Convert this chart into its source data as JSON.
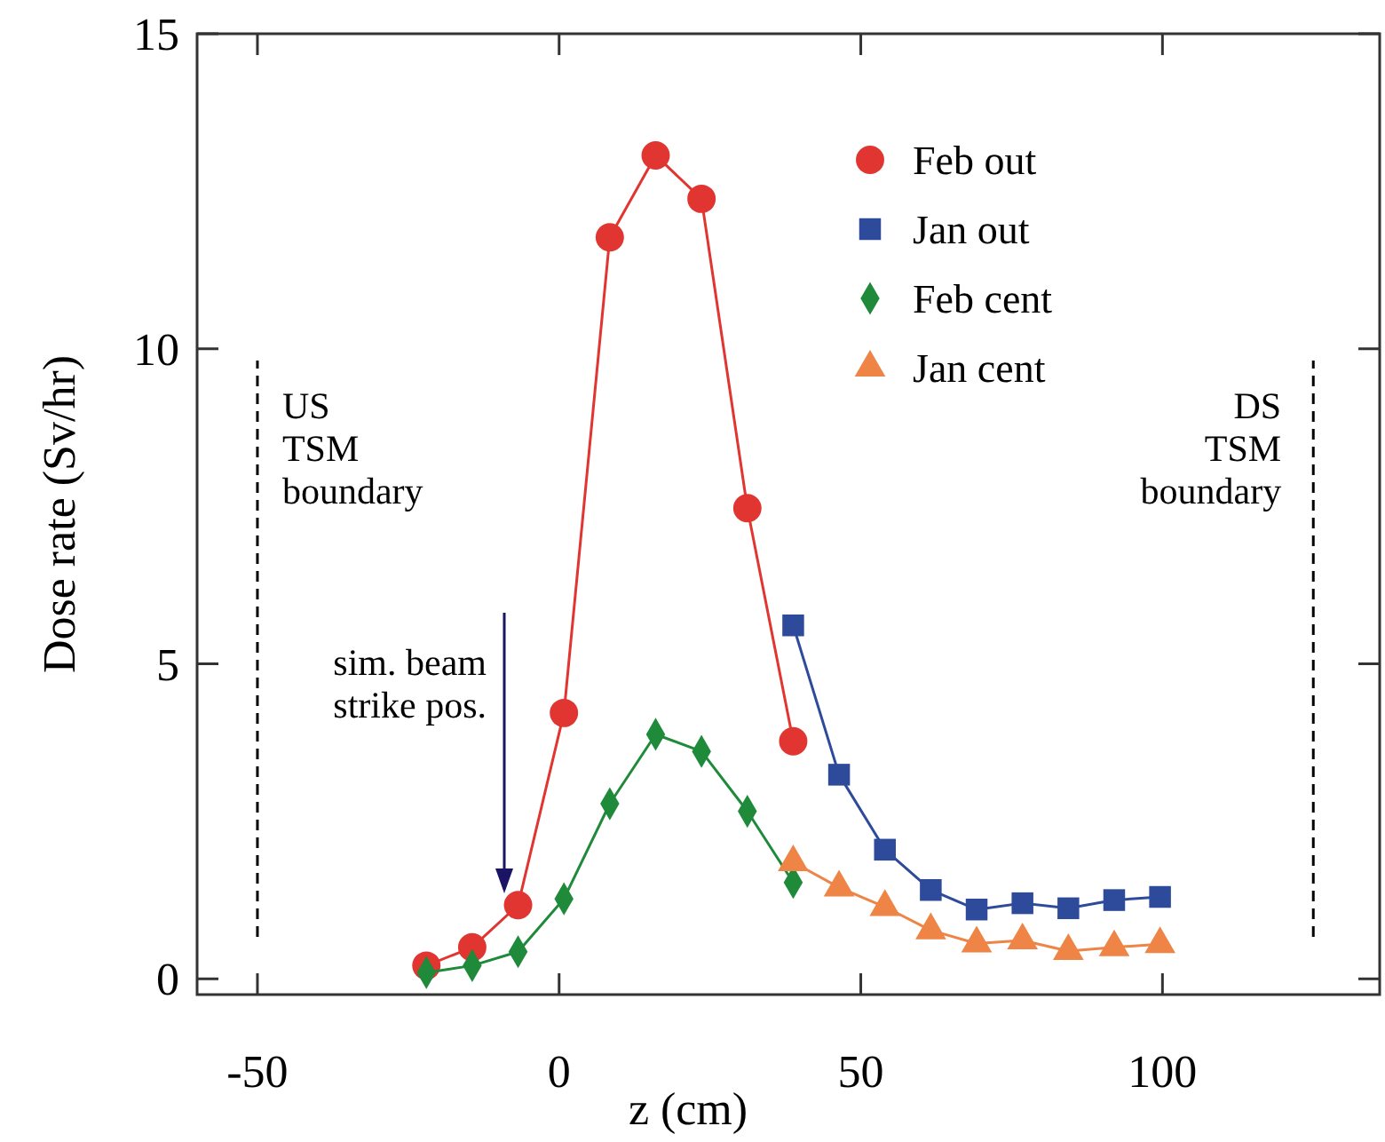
{
  "chart_data": {
    "type": "line",
    "xlabel": "z (cm)",
    "ylabel": "Dose rate (Sv/hr)",
    "xlim": [
      -60,
      136
    ],
    "ylim": [
      -0.25,
      15
    ],
    "xticks": [
      -50,
      0,
      50,
      100
    ],
    "yticks": [
      0,
      5,
      10,
      15
    ],
    "legend": "top right",
    "series": [
      {
        "name": "Feb out",
        "color": "#e03530",
        "marker": "circle",
        "x": [
          -22,
          -14.4,
          -6.8,
          0.8,
          8.4,
          16,
          23.6,
          31.2,
          38.8
        ],
        "values": [
          0.21,
          0.5,
          1.17,
          4.22,
          11.77,
          13.07,
          12.38,
          7.47,
          3.77
        ]
      },
      {
        "name": "Jan out",
        "color": "#2e4b9b",
        "marker": "square",
        "x": [
          38.8,
          46.4,
          54,
          61.6,
          69.2,
          76.8,
          84.4,
          92,
          99.6
        ],
        "values": [
          5.61,
          3.24,
          2.05,
          1.41,
          1.1,
          1.2,
          1.12,
          1.25,
          1.3
        ]
      },
      {
        "name": "Feb cent",
        "color": "#1f8a3a",
        "marker": "diamond",
        "x": [
          -22,
          -14.4,
          -6.8,
          0.8,
          8.4,
          16,
          23.6,
          31.2,
          38.8
        ],
        "values": [
          0.1,
          0.21,
          0.43,
          1.27,
          2.78,
          3.88,
          3.61,
          2.66,
          1.53
        ]
      },
      {
        "name": "Jan cent",
        "color": "#ee8445",
        "marker": "triangle",
        "x": [
          38.8,
          46.4,
          54,
          61.6,
          69.2,
          76.8,
          84.4,
          92,
          99.6
        ],
        "values": [
          1.85,
          1.45,
          1.14,
          0.77,
          0.56,
          0.61,
          0.44,
          0.5,
          0.55
        ]
      }
    ],
    "ref_lines": [
      {
        "axis": "x",
        "value": -50,
        "label": "US\nTSM\nboundary",
        "line_style": "dashed"
      },
      {
        "axis": "x",
        "value": 125,
        "label": "DS\nTSM\nboundary",
        "line_style": "dashed"
      }
    ],
    "annotations": [
      "sim. beam\nstrike pos."
    ]
  }
}
